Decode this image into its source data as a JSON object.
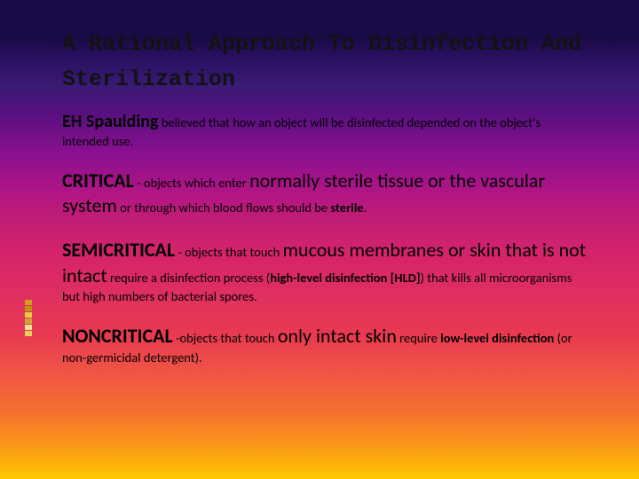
{
  "title": "A Rational Approach To Disinfection And Sterilization",
  "p1": {
    "lead": "EH Spaulding",
    "rest": " believed that how an object will be disinfected depended on the object's intended use."
  },
  "p2": {
    "cat": "CRITICAL",
    "t1": " - objects which enter ",
    "big": "normally sterile tissue or the vascular system",
    "t2": " or through which blood flows should be ",
    "b1": "sterile",
    "t3": "."
  },
  "p3": {
    "cat": "SEMICRITICAL",
    "t1": " - objects that touch ",
    "big": "mucous membranes or skin that is not intact",
    "t2": " require a disinfection process (",
    "b1": "high-level disinfection [HLD]",
    "t3": ") that kills all microorganisms but high numbers of bacterial spores."
  },
  "p4": {
    "cat": "NONCRITICAL",
    "t1": " -objects that touch ",
    "big": "only intact skin",
    "t2": "  require ",
    "b1": "low-level disinfection",
    "t3": " (or non-germicidal detergent)."
  },
  "accent_colors": [
    "#d4a017",
    "#b89600",
    "#e8c840",
    "#c9a832",
    "#f2df90",
    "#e8d060"
  ]
}
